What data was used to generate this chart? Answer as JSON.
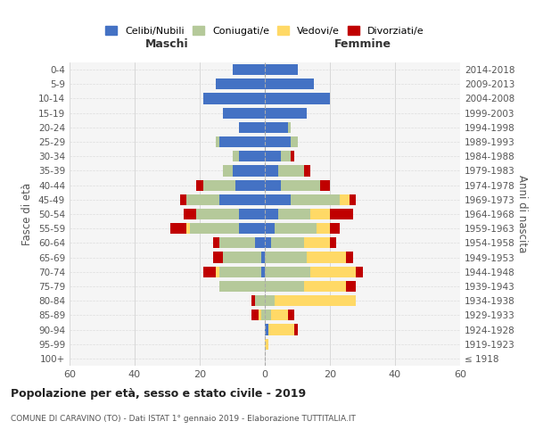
{
  "age_groups": [
    "100+",
    "95-99",
    "90-94",
    "85-89",
    "80-84",
    "75-79",
    "70-74",
    "65-69",
    "60-64",
    "55-59",
    "50-54",
    "45-49",
    "40-44",
    "35-39",
    "30-34",
    "25-29",
    "20-24",
    "15-19",
    "10-14",
    "5-9",
    "0-4"
  ],
  "birth_years": [
    "≤ 1918",
    "1919-1923",
    "1924-1928",
    "1929-1933",
    "1934-1938",
    "1939-1943",
    "1944-1948",
    "1949-1953",
    "1954-1958",
    "1959-1963",
    "1964-1968",
    "1969-1973",
    "1974-1978",
    "1979-1983",
    "1984-1988",
    "1989-1993",
    "1994-1998",
    "1999-2003",
    "2004-2008",
    "2009-2013",
    "2014-2018"
  ],
  "maschi": {
    "celibi": [
      0,
      0,
      0,
      0,
      0,
      0,
      1,
      1,
      3,
      8,
      8,
      14,
      9,
      10,
      8,
      14,
      8,
      13,
      19,
      15,
      10
    ],
    "coniugati": [
      0,
      0,
      0,
      1,
      3,
      14,
      13,
      12,
      11,
      15,
      13,
      10,
      10,
      3,
      2,
      1,
      0,
      0,
      0,
      0,
      0
    ],
    "vedovi": [
      0,
      0,
      0,
      1,
      0,
      0,
      1,
      0,
      0,
      1,
      0,
      0,
      0,
      0,
      0,
      0,
      0,
      0,
      0,
      0,
      0
    ],
    "divorziati": [
      0,
      0,
      0,
      2,
      1,
      0,
      4,
      3,
      2,
      5,
      4,
      2,
      2,
      0,
      0,
      0,
      0,
      0,
      0,
      0,
      0
    ]
  },
  "femmine": {
    "nubili": [
      0,
      0,
      1,
      0,
      0,
      0,
      0,
      0,
      2,
      3,
      4,
      8,
      5,
      4,
      5,
      8,
      7,
      13,
      20,
      15,
      10
    ],
    "coniugate": [
      0,
      0,
      0,
      2,
      3,
      12,
      14,
      13,
      10,
      13,
      10,
      15,
      12,
      8,
      3,
      2,
      1,
      0,
      0,
      0,
      0
    ],
    "vedove": [
      0,
      1,
      8,
      5,
      25,
      13,
      14,
      12,
      8,
      4,
      6,
      3,
      0,
      0,
      0,
      0,
      0,
      0,
      0,
      0,
      0
    ],
    "divorziate": [
      0,
      0,
      1,
      2,
      0,
      3,
      2,
      2,
      2,
      3,
      7,
      2,
      3,
      2,
      1,
      0,
      0,
      0,
      0,
      0,
      0
    ]
  },
  "colors": {
    "celibi": "#4472C4",
    "coniugati": "#B5C99A",
    "vedovi": "#FFD966",
    "divorziati": "#C00000"
  },
  "title": "Popolazione per età, sesso e stato civile - 2019",
  "subtitle": "COMUNE DI CARAVINO (TO) - Dati ISTAT 1° gennaio 2019 - Elaborazione TUTTITALIA.IT",
  "ylabel_left": "Fasce di età",
  "ylabel_right": "Anni di nascita",
  "xlabel_left": "Maschi",
  "xlabel_right": "Femmine",
  "xlim": 60,
  "background": "#f5f5f5",
  "legend_labels": [
    "Celibi/Nubili",
    "Coniugati/e",
    "Vedovi/e",
    "Divorziati/e"
  ]
}
